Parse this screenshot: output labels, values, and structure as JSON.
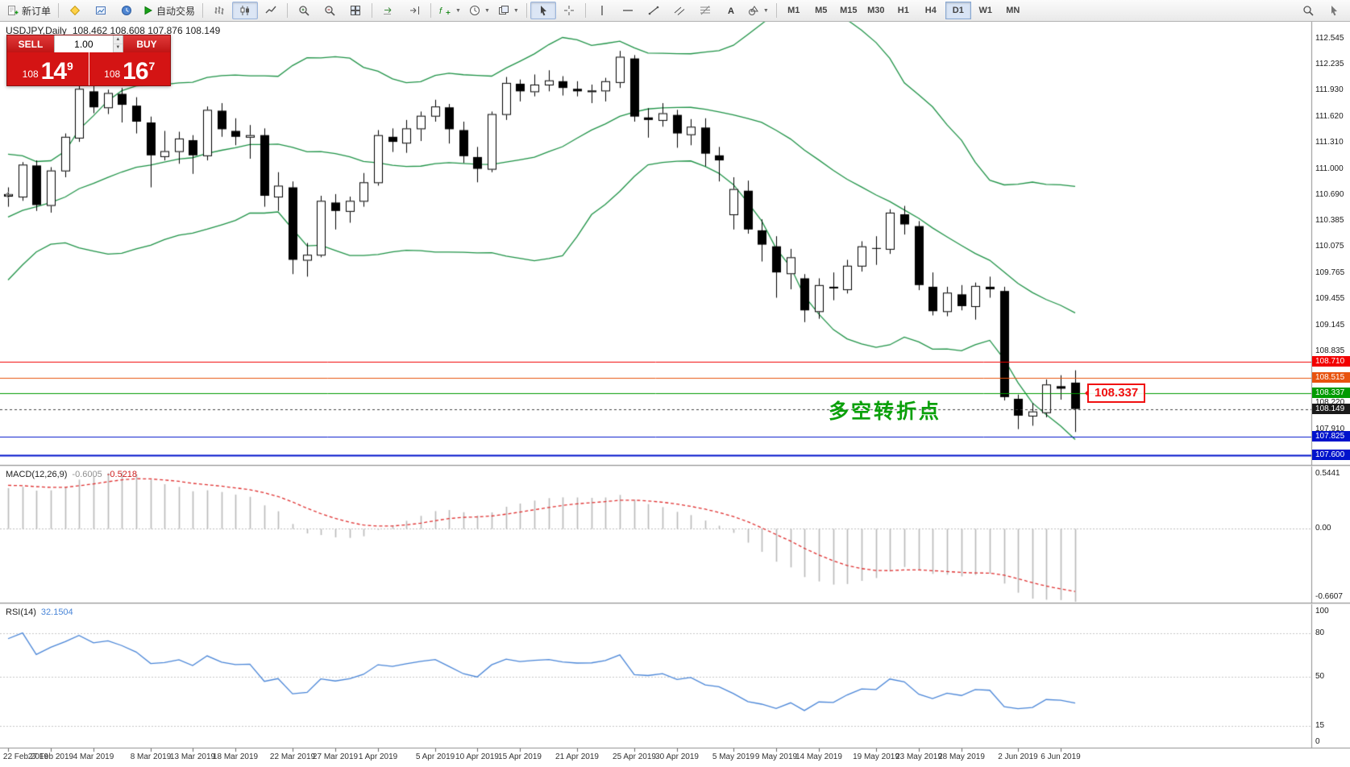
{
  "toolbar": {
    "new_order_label": "新订单",
    "autotrading_label": "自动交易",
    "timeframes": [
      "M1",
      "M5",
      "M15",
      "M30",
      "H1",
      "H4",
      "D1",
      "W1",
      "MN"
    ],
    "active_timeframe": "D1"
  },
  "chart_title": {
    "symbol": "USDJPY,Daily",
    "ohlc": "108.462 108.608 107.876 108.149"
  },
  "trade_panel": {
    "sell_label": "SELL",
    "buy_label": "BUY",
    "volume": "1.00",
    "sell": {
      "prefix": "108",
      "main": "14",
      "sup": "9"
    },
    "buy": {
      "prefix": "108",
      "main": "16",
      "sup": "7"
    }
  },
  "annotation": "多空转折点",
  "callout": {
    "text": "108.337"
  },
  "indicators": {
    "macd": {
      "label": "MACD(12,26,9)",
      "value_main": "-0.6005",
      "value_signal": "-0.5218",
      "scale": {
        "max": 0.5441,
        "min": -0.6607
      },
      "axis_labels": [
        "0.5441",
        "0.00",
        "-0.6607"
      ]
    },
    "rsi": {
      "label": "RSI(14)",
      "value": "32.1504",
      "levels": [
        80,
        50,
        15
      ],
      "axis_labels": [
        "100",
        "80",
        "50",
        "15",
        "0"
      ]
    }
  },
  "price_axis": {
    "ticks": [
      "112.545",
      "112.235",
      "111.930",
      "111.620",
      "111.310",
      "111.000",
      "110.690",
      "110.385",
      "110.075",
      "109.765",
      "109.455",
      "109.145",
      "108.835",
      "108.220",
      "107.910"
    ],
    "badges": [
      {
        "value": "108.710",
        "color": "#f20000"
      },
      {
        "value": "108.515",
        "color": "#e8530e"
      },
      {
        "value": "108.337",
        "color": "#009b00"
      },
      {
        "value": "108.149",
        "color": "#1a1a1a"
      },
      {
        "value": "107.825",
        "color": "#0013cc"
      },
      {
        "value": "107.600",
        "color": "#0013cc"
      }
    ]
  },
  "hlines": [
    {
      "price": 108.71,
      "color": "#f20000",
      "width": 1
    },
    {
      "price": 108.515,
      "color": "#e8530e",
      "width": 1
    },
    {
      "price": 108.337,
      "color": "#009b00",
      "width": 1
    },
    {
      "price": 107.825,
      "color": "#0013cc",
      "width": 1
    },
    {
      "price": 107.6,
      "color": "#0013cc",
      "width": 2
    },
    {
      "price": 108.149,
      "color": "#444444",
      "width": 1,
      "dash": true
    }
  ],
  "date_axis": {
    "labels": [
      "22 Feb 2019",
      "27 Feb 2019",
      "4 Mar 2019",
      "8 Mar 2019",
      "13 Mar 2019",
      "18 Mar 2019",
      "22 Mar 2019",
      "27 Mar 2019",
      "1 Apr 2019",
      "5 Apr 2019",
      "10 Apr 2019",
      "15 Apr 2019",
      "21 Apr 2019",
      "25 Apr 2019",
      "30 Apr 2019",
      "5 May 2019",
      "9 May 2019",
      "14 May 2019",
      "19 May 2019",
      "23 May 2019",
      "28 May 2019",
      "2 Jun 2019",
      "6 Jun 2019"
    ],
    "bar_indices": [
      0,
      3,
      6,
      10,
      13,
      16,
      20,
      23,
      26,
      30,
      33,
      36,
      40,
      44,
      47,
      51,
      54,
      57,
      61,
      64,
      67,
      71,
      74
    ]
  },
  "chart_data": {
    "type": "candlestick",
    "symbol": "USDJPY",
    "timeframe": "Daily",
    "title": "USDJPY,Daily 108.462 108.608 107.876 108.149",
    "price_range_view": [
      107.49,
      112.75
    ],
    "overlays": {
      "bollinger": {
        "period": 20,
        "deviation": 2,
        "color": "#1f9347"
      }
    },
    "prehistory_closes": [
      109.0,
      109.45,
      109.72,
      109.96,
      110.08,
      109.98,
      110.46,
      110.47,
      110.5,
      110.45,
      110.62,
      110.5,
      110.63,
      110.85,
      110.66,
      110.74,
      110.78,
      110.62,
      110.68,
      110.72
    ],
    "ohlc": [
      [
        110.7,
        110.78,
        110.55,
        110.67
      ],
      [
        110.66,
        111.08,
        110.62,
        111.05
      ],
      [
        111.04,
        111.1,
        110.5,
        110.57
      ],
      [
        110.56,
        111.02,
        110.48,
        110.98
      ],
      [
        110.97,
        111.42,
        110.9,
        111.38
      ],
      [
        111.36,
        112.02,
        111.32,
        111.95
      ],
      [
        111.92,
        112.14,
        111.66,
        111.73
      ],
      [
        111.72,
        111.94,
        111.65,
        111.9
      ],
      [
        111.89,
        111.96,
        111.55,
        111.76
      ],
      [
        111.75,
        111.85,
        111.42,
        111.56
      ],
      [
        111.55,
        111.62,
        110.78,
        111.16
      ],
      [
        111.14,
        111.45,
        111.1,
        111.21
      ],
      [
        111.2,
        111.44,
        111.06,
        111.36
      ],
      [
        111.34,
        111.4,
        110.94,
        111.16
      ],
      [
        111.15,
        111.74,
        111.1,
        111.7
      ],
      [
        111.69,
        111.78,
        111.38,
        111.47
      ],
      [
        111.45,
        111.6,
        111.28,
        111.38
      ],
      [
        111.37,
        111.52,
        111.12,
        111.4
      ],
      [
        111.4,
        111.48,
        110.55,
        110.68
      ],
      [
        110.66,
        110.96,
        110.5,
        110.8
      ],
      [
        110.78,
        110.85,
        109.75,
        109.92
      ],
      [
        109.91,
        110.12,
        109.72,
        109.98
      ],
      [
        109.97,
        110.68,
        109.95,
        110.62
      ],
      [
        110.6,
        110.7,
        110.28,
        110.5
      ],
      [
        110.49,
        110.67,
        110.36,
        110.62
      ],
      [
        110.61,
        110.95,
        110.55,
        110.84
      ],
      [
        110.83,
        111.46,
        110.8,
        111.4
      ],
      [
        111.38,
        111.48,
        111.2,
        111.32
      ],
      [
        111.3,
        111.58,
        111.19,
        111.48
      ],
      [
        111.47,
        111.68,
        111.33,
        111.63
      ],
      [
        111.62,
        111.82,
        111.56,
        111.74
      ],
      [
        111.73,
        111.77,
        111.3,
        111.47
      ],
      [
        111.46,
        111.56,
        111.07,
        111.15
      ],
      [
        111.14,
        111.26,
        110.84,
        111.0
      ],
      [
        110.99,
        111.68,
        110.96,
        111.65
      ],
      [
        111.64,
        112.09,
        111.58,
        112.02
      ],
      [
        112.01,
        112.06,
        111.8,
        111.92
      ],
      [
        111.91,
        112.12,
        111.86,
        112.0
      ],
      [
        111.99,
        112.17,
        111.92,
        112.05
      ],
      [
        112.04,
        112.1,
        111.87,
        111.96
      ],
      [
        111.95,
        112.04,
        111.86,
        111.92
      ],
      [
        111.91,
        112.0,
        111.78,
        111.93
      ],
      [
        111.92,
        112.08,
        111.8,
        112.04
      ],
      [
        112.02,
        112.4,
        111.96,
        112.33
      ],
      [
        112.31,
        112.35,
        111.56,
        111.62
      ],
      [
        111.61,
        111.72,
        111.37,
        111.58
      ],
      [
        111.57,
        111.78,
        111.5,
        111.66
      ],
      [
        111.64,
        111.7,
        111.25,
        111.42
      ],
      [
        111.4,
        111.59,
        111.28,
        111.5
      ],
      [
        111.49,
        111.6,
        111.03,
        111.18
      ],
      [
        111.16,
        111.26,
        110.85,
        111.1
      ],
      [
        110.45,
        110.9,
        110.28,
        110.76
      ],
      [
        110.74,
        110.86,
        110.23,
        110.28
      ],
      [
        110.27,
        110.4,
        109.9,
        110.1
      ],
      [
        110.08,
        110.2,
        109.47,
        109.77
      ],
      [
        109.75,
        110.05,
        109.57,
        109.95
      ],
      [
        109.7,
        109.75,
        109.18,
        109.32
      ],
      [
        109.3,
        109.7,
        109.22,
        109.62
      ],
      [
        109.6,
        109.77,
        109.44,
        109.58
      ],
      [
        109.56,
        109.92,
        109.52,
        109.85
      ],
      [
        109.84,
        110.14,
        109.78,
        110.08
      ],
      [
        110.06,
        110.2,
        109.86,
        110.05
      ],
      [
        110.04,
        110.52,
        109.99,
        110.48
      ],
      [
        110.46,
        110.56,
        110.22,
        110.34
      ],
      [
        110.32,
        110.38,
        109.56,
        109.62
      ],
      [
        109.6,
        109.77,
        109.26,
        109.31
      ],
      [
        109.3,
        109.6,
        109.25,
        109.53
      ],
      [
        109.51,
        109.62,
        109.32,
        109.37
      ],
      [
        109.36,
        109.65,
        109.21,
        109.61
      ],
      [
        109.6,
        109.72,
        109.47,
        109.57
      ],
      [
        109.55,
        109.6,
        108.25,
        108.29
      ],
      [
        108.27,
        108.32,
        107.91,
        108.07
      ],
      [
        108.06,
        108.22,
        107.95,
        108.12
      ],
      [
        108.1,
        108.5,
        108.05,
        108.44
      ],
      [
        108.42,
        108.55,
        108.26,
        108.39
      ],
      [
        108.462,
        108.608,
        107.876,
        108.149
      ]
    ]
  }
}
